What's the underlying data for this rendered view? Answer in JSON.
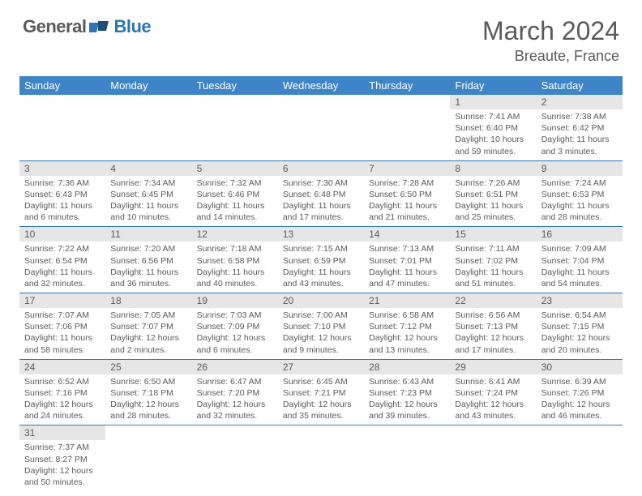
{
  "logo": {
    "general": "General",
    "blue": "Blue"
  },
  "title": "March 2024",
  "location": "Breaute, France",
  "colors": {
    "header_bg": "#3d85c6",
    "header_text": "#ffffff",
    "row_divider": "#2e75b6",
    "daynum_bg": "#e6e6e6",
    "text": "#5a5a5a",
    "logo_blue": "#2e75b6"
  },
  "weekdays": [
    "Sunday",
    "Monday",
    "Tuesday",
    "Wednesday",
    "Thursday",
    "Friday",
    "Saturday"
  ],
  "weeks": [
    [
      {
        "empty": true
      },
      {
        "empty": true
      },
      {
        "empty": true
      },
      {
        "empty": true
      },
      {
        "empty": true
      },
      {
        "day": "1",
        "sunrise": "Sunrise: 7:41 AM",
        "sunset": "Sunset: 6:40 PM",
        "daylight": "Daylight: 10 hours and 59 minutes."
      },
      {
        "day": "2",
        "sunrise": "Sunrise: 7:38 AM",
        "sunset": "Sunset: 6:42 PM",
        "daylight": "Daylight: 11 hours and 3 minutes."
      }
    ],
    [
      {
        "day": "3",
        "sunrise": "Sunrise: 7:36 AM",
        "sunset": "Sunset: 6:43 PM",
        "daylight": "Daylight: 11 hours and 6 minutes."
      },
      {
        "day": "4",
        "sunrise": "Sunrise: 7:34 AM",
        "sunset": "Sunset: 6:45 PM",
        "daylight": "Daylight: 11 hours and 10 minutes."
      },
      {
        "day": "5",
        "sunrise": "Sunrise: 7:32 AM",
        "sunset": "Sunset: 6:46 PM",
        "daylight": "Daylight: 11 hours and 14 minutes."
      },
      {
        "day": "6",
        "sunrise": "Sunrise: 7:30 AM",
        "sunset": "Sunset: 6:48 PM",
        "daylight": "Daylight: 11 hours and 17 minutes."
      },
      {
        "day": "7",
        "sunrise": "Sunrise: 7:28 AM",
        "sunset": "Sunset: 6:50 PM",
        "daylight": "Daylight: 11 hours and 21 minutes."
      },
      {
        "day": "8",
        "sunrise": "Sunrise: 7:26 AM",
        "sunset": "Sunset: 6:51 PM",
        "daylight": "Daylight: 11 hours and 25 minutes."
      },
      {
        "day": "9",
        "sunrise": "Sunrise: 7:24 AM",
        "sunset": "Sunset: 6:53 PM",
        "daylight": "Daylight: 11 hours and 28 minutes."
      }
    ],
    [
      {
        "day": "10",
        "sunrise": "Sunrise: 7:22 AM",
        "sunset": "Sunset: 6:54 PM",
        "daylight": "Daylight: 11 hours and 32 minutes."
      },
      {
        "day": "11",
        "sunrise": "Sunrise: 7:20 AM",
        "sunset": "Sunset: 6:56 PM",
        "daylight": "Daylight: 11 hours and 36 minutes."
      },
      {
        "day": "12",
        "sunrise": "Sunrise: 7:18 AM",
        "sunset": "Sunset: 6:58 PM",
        "daylight": "Daylight: 11 hours and 40 minutes."
      },
      {
        "day": "13",
        "sunrise": "Sunrise: 7:15 AM",
        "sunset": "Sunset: 6:59 PM",
        "daylight": "Daylight: 11 hours and 43 minutes."
      },
      {
        "day": "14",
        "sunrise": "Sunrise: 7:13 AM",
        "sunset": "Sunset: 7:01 PM",
        "daylight": "Daylight: 11 hours and 47 minutes."
      },
      {
        "day": "15",
        "sunrise": "Sunrise: 7:11 AM",
        "sunset": "Sunset: 7:02 PM",
        "daylight": "Daylight: 11 hours and 51 minutes."
      },
      {
        "day": "16",
        "sunrise": "Sunrise: 7:09 AM",
        "sunset": "Sunset: 7:04 PM",
        "daylight": "Daylight: 11 hours and 54 minutes."
      }
    ],
    [
      {
        "day": "17",
        "sunrise": "Sunrise: 7:07 AM",
        "sunset": "Sunset: 7:06 PM",
        "daylight": "Daylight: 11 hours and 58 minutes."
      },
      {
        "day": "18",
        "sunrise": "Sunrise: 7:05 AM",
        "sunset": "Sunset: 7:07 PM",
        "daylight": "Daylight: 12 hours and 2 minutes."
      },
      {
        "day": "19",
        "sunrise": "Sunrise: 7:03 AM",
        "sunset": "Sunset: 7:09 PM",
        "daylight": "Daylight: 12 hours and 6 minutes."
      },
      {
        "day": "20",
        "sunrise": "Sunrise: 7:00 AM",
        "sunset": "Sunset: 7:10 PM",
        "daylight": "Daylight: 12 hours and 9 minutes."
      },
      {
        "day": "21",
        "sunrise": "Sunrise: 6:58 AM",
        "sunset": "Sunset: 7:12 PM",
        "daylight": "Daylight: 12 hours and 13 minutes."
      },
      {
        "day": "22",
        "sunrise": "Sunrise: 6:56 AM",
        "sunset": "Sunset: 7:13 PM",
        "daylight": "Daylight: 12 hours and 17 minutes."
      },
      {
        "day": "23",
        "sunrise": "Sunrise: 6:54 AM",
        "sunset": "Sunset: 7:15 PM",
        "daylight": "Daylight: 12 hours and 20 minutes."
      }
    ],
    [
      {
        "day": "24",
        "sunrise": "Sunrise: 6:52 AM",
        "sunset": "Sunset: 7:16 PM",
        "daylight": "Daylight: 12 hours and 24 minutes."
      },
      {
        "day": "25",
        "sunrise": "Sunrise: 6:50 AM",
        "sunset": "Sunset: 7:18 PM",
        "daylight": "Daylight: 12 hours and 28 minutes."
      },
      {
        "day": "26",
        "sunrise": "Sunrise: 6:47 AM",
        "sunset": "Sunset: 7:20 PM",
        "daylight": "Daylight: 12 hours and 32 minutes."
      },
      {
        "day": "27",
        "sunrise": "Sunrise: 6:45 AM",
        "sunset": "Sunset: 7:21 PM",
        "daylight": "Daylight: 12 hours and 35 minutes."
      },
      {
        "day": "28",
        "sunrise": "Sunrise: 6:43 AM",
        "sunset": "Sunset: 7:23 PM",
        "daylight": "Daylight: 12 hours and 39 minutes."
      },
      {
        "day": "29",
        "sunrise": "Sunrise: 6:41 AM",
        "sunset": "Sunset: 7:24 PM",
        "daylight": "Daylight: 12 hours and 43 minutes."
      },
      {
        "day": "30",
        "sunrise": "Sunrise: 6:39 AM",
        "sunset": "Sunset: 7:26 PM",
        "daylight": "Daylight: 12 hours and 46 minutes."
      }
    ],
    [
      {
        "day": "31",
        "sunrise": "Sunrise: 7:37 AM",
        "sunset": "Sunset: 8:27 PM",
        "daylight": "Daylight: 12 hours and 50 minutes."
      },
      {
        "empty": true
      },
      {
        "empty": true
      },
      {
        "empty": true
      },
      {
        "empty": true
      },
      {
        "empty": true
      },
      {
        "empty": true
      }
    ]
  ]
}
